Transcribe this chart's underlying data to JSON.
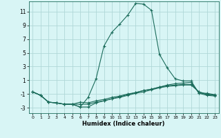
{
  "xlabel": "Humidex (Indice chaleur)",
  "background_color": "#d8f5f5",
  "grid_color": "#b0d8d8",
  "line_color": "#1a6b5a",
  "xlim": [
    -0.5,
    23.5
  ],
  "ylim": [
    -3.8,
    12.5
  ],
  "xticks": [
    0,
    1,
    2,
    3,
    4,
    5,
    6,
    7,
    8,
    9,
    10,
    11,
    12,
    13,
    14,
    15,
    16,
    17,
    18,
    19,
    20,
    21,
    22,
    23
  ],
  "yticks": [
    -3,
    -1,
    1,
    3,
    5,
    7,
    9,
    11
  ],
  "series": [
    {
      "x": [
        0,
        1,
        2,
        3,
        4,
        5,
        6,
        7,
        8,
        9,
        10,
        11,
        12,
        13,
        14,
        15,
        16,
        17,
        18,
        19,
        20,
        21,
        22,
        23
      ],
      "y": [
        -0.7,
        -1.2,
        -2.2,
        -2.3,
        -2.5,
        -2.5,
        -2.9,
        -1.5,
        1.2,
        6.0,
        8.0,
        9.2,
        10.5,
        12.2,
        12.1,
        11.2,
        4.8,
        2.8,
        1.2,
        0.9,
        0.9,
        -0.9,
        -0.9,
        -1.1
      ]
    },
    {
      "x": [
        0,
        1,
        2,
        3,
        4,
        5,
        6,
        7,
        8,
        9,
        10,
        11,
        12,
        13,
        14,
        15,
        16,
        17,
        18,
        19,
        20,
        21,
        22,
        23
      ],
      "y": [
        -0.7,
        -1.2,
        -2.2,
        -2.3,
        -2.5,
        -2.5,
        -2.9,
        -2.9,
        -2.3,
        -2.0,
        -1.7,
        -1.4,
        -1.1,
        -0.8,
        -0.5,
        -0.3,
        0.0,
        0.3,
        0.5,
        0.6,
        0.7,
        -0.9,
        -1.2,
        -1.3
      ]
    },
    {
      "x": [
        0,
        1,
        2,
        3,
        4,
        5,
        6,
        7,
        8,
        9,
        10,
        11,
        12,
        13,
        14,
        15,
        16,
        17,
        18,
        19,
        20,
        21,
        22,
        23
      ],
      "y": [
        -0.7,
        -1.2,
        -2.2,
        -2.3,
        -2.5,
        -2.5,
        -2.2,
        -2.3,
        -2.0,
        -1.8,
        -1.5,
        -1.3,
        -1.0,
        -0.8,
        -0.5,
        -0.3,
        0.0,
        0.2,
        0.3,
        0.4,
        0.4,
        -0.7,
        -1.1,
        -1.2
      ]
    },
    {
      "x": [
        0,
        1,
        2,
        3,
        4,
        5,
        6,
        7,
        8,
        9,
        10,
        11,
        12,
        13,
        14,
        15,
        16,
        17,
        18,
        19,
        20,
        21,
        22,
        23
      ],
      "y": [
        -0.7,
        -1.2,
        -2.2,
        -2.3,
        -2.5,
        -2.5,
        -2.5,
        -2.5,
        -2.2,
        -2.0,
        -1.7,
        -1.5,
        -1.2,
        -0.9,
        -0.7,
        -0.4,
        -0.1,
        0.1,
        0.2,
        0.3,
        0.3,
        -0.7,
        -1.0,
        -1.2
      ]
    }
  ]
}
